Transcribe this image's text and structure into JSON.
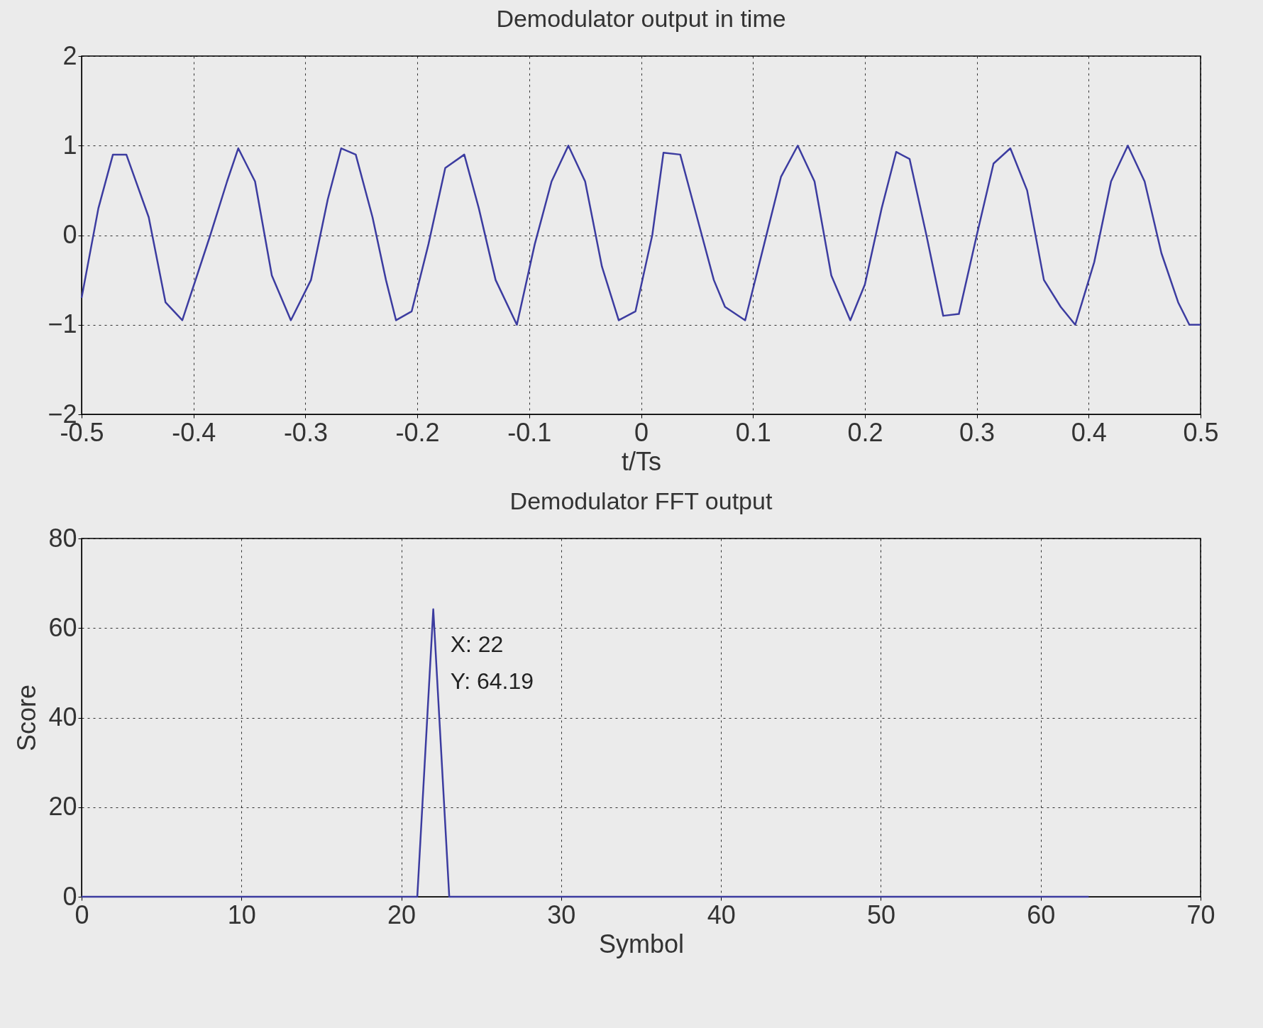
{
  "chart_data": [
    {
      "type": "line",
      "title": "Demodulator output in time",
      "xlabel": "t/Ts",
      "xlim": [
        -0.5,
        0.5
      ],
      "xticks": [
        -0.5,
        -0.4,
        -0.3,
        -0.2,
        -0.1,
        0,
        0.1,
        0.2,
        0.3,
        0.4,
        0.5
      ],
      "ylim": [
        -2,
        2
      ],
      "yticks": [
        -2,
        -1,
        0,
        1,
        2
      ],
      "grid": true,
      "color": "#3c3ca0",
      "x": [
        -0.5,
        -0.485,
        -0.472,
        -0.46,
        -0.44,
        -0.425,
        -0.41,
        -0.385,
        -0.37,
        -0.36,
        -0.345,
        -0.33,
        -0.313,
        -0.295,
        -0.28,
        -0.268,
        -0.255,
        -0.24,
        -0.228,
        -0.219,
        -0.205,
        -0.19,
        -0.175,
        -0.158,
        -0.145,
        -0.13,
        -0.111,
        -0.095,
        -0.08,
        -0.065,
        -0.05,
        -0.035,
        -0.02,
        -0.005,
        0.01,
        0.02,
        0.035,
        0.05,
        0.065,
        0.075,
        0.093,
        0.11,
        0.125,
        0.14,
        0.155,
        0.17,
        0.187,
        0.2,
        0.215,
        0.228,
        0.24,
        0.255,
        0.27,
        0.284,
        0.3,
        0.315,
        0.33,
        0.345,
        0.36,
        0.375,
        0.388,
        0.405,
        0.42,
        0.435,
        0.45,
        0.465,
        0.48,
        0.49,
        0.5
      ],
      "values": [
        -0.7,
        0.3,
        0.9,
        0.9,
        0.2,
        -0.75,
        -0.95,
        0,
        0.6,
        0.97,
        0.6,
        -0.45,
        -0.95,
        -0.5,
        0.4,
        0.97,
        0.9,
        0.2,
        -0.5,
        -0.95,
        -0.85,
        -0.1,
        0.75,
        0.9,
        0.3,
        -0.5,
        -1,
        -0.1,
        0.6,
        1,
        0.6,
        -0.35,
        -0.95,
        -0.85,
        0,
        0.92,
        0.9,
        0.2,
        -0.5,
        -0.8,
        -0.95,
        -0.1,
        0.65,
        1,
        0.6,
        -0.45,
        -0.95,
        -0.55,
        0.3,
        0.93,
        0.85,
        0,
        -0.9,
        -0.88,
        0,
        0.8,
        0.97,
        0.5,
        -0.5,
        -0.8,
        -1,
        -0.3,
        0.6,
        1,
        0.6,
        -0.2,
        -0.75,
        -1,
        -1
      ]
    },
    {
      "type": "line",
      "title": "Demodulator FFT output",
      "xlabel": "Symbol",
      "ylabel": "Score",
      "xlim": [
        0,
        70
      ],
      "xticks": [
        0,
        10,
        20,
        30,
        40,
        50,
        60,
        70
      ],
      "ylim": [
        0,
        80
      ],
      "yticks": [
        0,
        20,
        40,
        60,
        80
      ],
      "grid": true,
      "color": "#3c3ca0",
      "x": [
        0,
        1,
        2,
        3,
        4,
        5,
        6,
        7,
        8,
        9,
        10,
        11,
        12,
        13,
        14,
        15,
        16,
        17,
        18,
        19,
        20,
        21,
        22,
        23,
        24,
        25,
        26,
        27,
        28,
        29,
        30,
        31,
        32,
        33,
        34,
        35,
        36,
        37,
        38,
        39,
        40,
        41,
        42,
        43,
        44,
        45,
        46,
        47,
        48,
        49,
        50,
        51,
        52,
        53,
        54,
        55,
        56,
        57,
        58,
        59,
        60,
        61,
        62,
        63
      ],
      "values": [
        0,
        0,
        0,
        0,
        0,
        0,
        0,
        0,
        0,
        0,
        0,
        0,
        0,
        0,
        0,
        0,
        0,
        0,
        0,
        0,
        0,
        0,
        64.19,
        0,
        0,
        0,
        0,
        0,
        0,
        0,
        0,
        0,
        0,
        0,
        0,
        0,
        0,
        0,
        0,
        0,
        0,
        0,
        0,
        0,
        0,
        0,
        0,
        0,
        0,
        0,
        0,
        0,
        0,
        0,
        0,
        0,
        0,
        0,
        0,
        0,
        0,
        0,
        0,
        0
      ],
      "annotations": [
        {
          "text": "X: 22",
          "x": 22,
          "y": 64.19
        },
        {
          "text": "Y: 64.19",
          "x": 22,
          "y": 64.19
        }
      ]
    }
  ]
}
